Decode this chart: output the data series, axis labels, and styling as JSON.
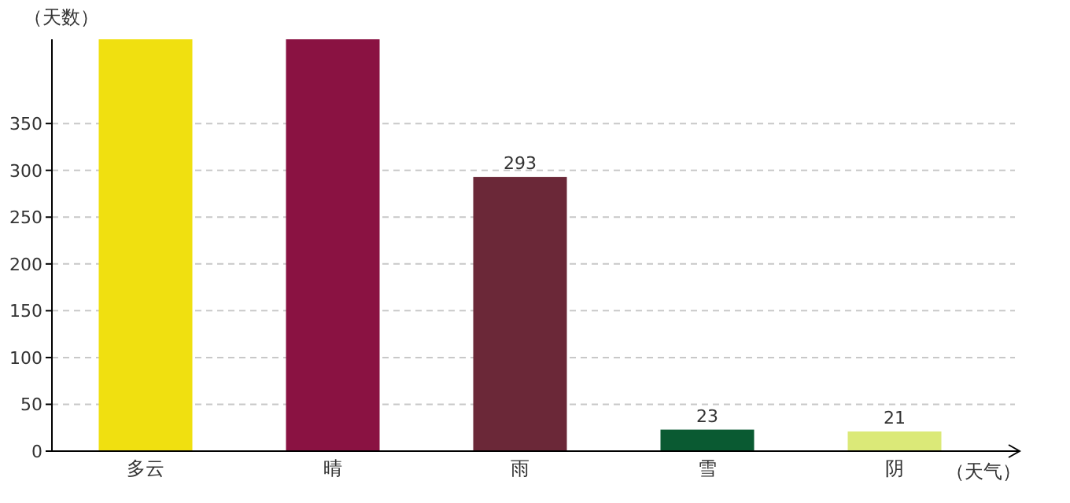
{
  "chart_data": {
    "type": "bar",
    "xlabel": "（天气）",
    "ylabel": "（天数）",
    "categories": [
      "多云",
      "晴",
      "雨",
      "雪",
      "阴"
    ],
    "values": [
      440,
      440,
      293,
      23,
      21
    ],
    "colors": [
      "#f0e010",
      "#8a1242",
      "#6b2838",
      "#0a5a32",
      "#dbe978"
    ],
    "value_labels": [
      null,
      null,
      "293",
      "23",
      "21"
    ],
    "ylim": [
      0,
      440
    ],
    "yticks": [
      0,
      50,
      100,
      150,
      200,
      250,
      300,
      350
    ],
    "grid": "y"
  }
}
